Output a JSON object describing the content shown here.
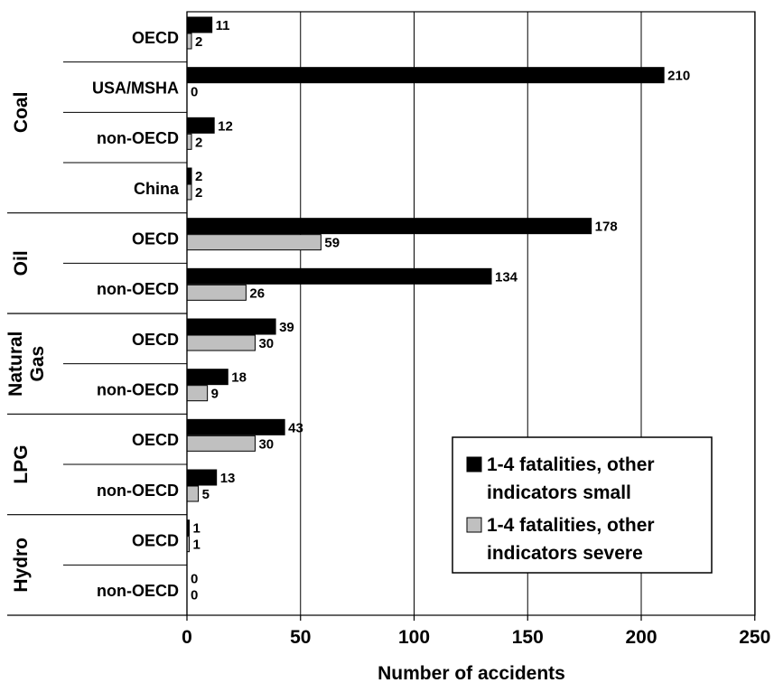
{
  "chart_data": {
    "type": "bar",
    "orientation": "horizontal",
    "xlabel": "Number of accidents",
    "xlim": [
      0,
      250
    ],
    "xticks": [
      0,
      50,
      100,
      150,
      200,
      250
    ],
    "grid": "vertical",
    "legend_position": "bottom-right",
    "groups": [
      {
        "name": "Coal",
        "categories": [
          "OECD",
          "USA/MSHA",
          "non-OECD",
          "China"
        ]
      },
      {
        "name": "Oil",
        "categories": [
          "OECD",
          "non-OECD"
        ]
      },
      {
        "name": "Natural Gas",
        "categories": [
          "OECD",
          "non-OECD"
        ]
      },
      {
        "name": "LPG",
        "categories": [
          "OECD",
          "non-OECD"
        ]
      },
      {
        "name": "Hydro",
        "categories": [
          "OECD",
          "non-OECD"
        ]
      }
    ],
    "series": [
      {
        "name": "1-4 fatalities, other indicators small",
        "color": "#000000",
        "values": [
          11,
          210,
          12,
          2,
          178,
          134,
          39,
          18,
          43,
          13,
          1,
          0
        ]
      },
      {
        "name": "1-4 fatalities, other indicators severe",
        "color": "#c0c0c0",
        "values": [
          2,
          0,
          2,
          2,
          59,
          26,
          30,
          9,
          30,
          5,
          1,
          0
        ]
      }
    ],
    "legend": [
      {
        "line1": "1-4 fatalities, other",
        "line2": "indicators small"
      },
      {
        "line1": "1-4 fatalities, other",
        "line2": "indicators severe"
      }
    ]
  }
}
